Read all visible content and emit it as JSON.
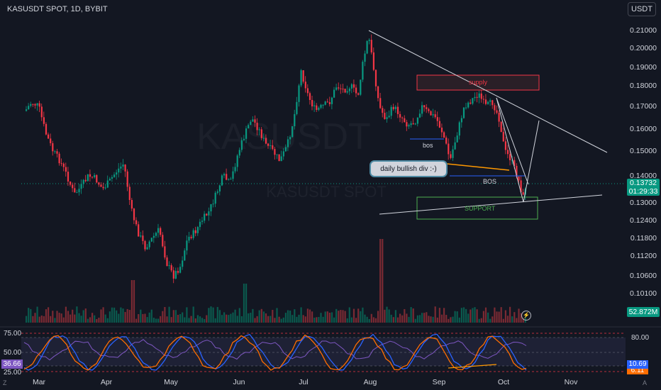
{
  "header": {
    "symbol_title": "KASUSDT SPOT, 1D, BYBIT",
    "currency_button": "USDT"
  },
  "watermark": {
    "ticker": "KASUSDT",
    "description": "KASUSDT SPOT"
  },
  "price_axis": {
    "ticks": [
      "0.21000",
      "0.20000",
      "0.19000",
      "0.18000",
      "0.17000",
      "0.16000",
      "0.15000",
      "0.14000",
      "0.13000",
      "0.12400",
      "0.11800",
      "0.11200",
      "0.10600",
      "0.10100"
    ],
    "last_price": "0.13732",
    "countdown": "01:29:33"
  },
  "volume": {
    "last_value": "52.872M"
  },
  "time_axis": {
    "labels": [
      "Mar",
      "Apr",
      "May",
      "Jun",
      "Jul",
      "Aug",
      "Sep",
      "Oct",
      "Nov"
    ]
  },
  "oscillator": {
    "ticks": [
      "75.00",
      "50.00",
      "25.00"
    ],
    "right_tick": "80.00",
    "k_value": "10.69",
    "d_value": "6.11",
    "left_value": "36.66"
  },
  "annotations": {
    "supply": "supply",
    "support": "SUPPORT",
    "bos_small": "bos",
    "bos_large": "BOS",
    "callout": "daily bullish div :-)"
  },
  "icons": {
    "bottom_left": "Z",
    "bottom_right": "A",
    "bolt": "lightning-icon"
  },
  "colors": {
    "up": "#089981",
    "down": "#f23645",
    "background": "#131722",
    "stoch_k": "#2962ff",
    "stoch_d": "#ff6d00",
    "rsi": "#7e57c2"
  }
}
